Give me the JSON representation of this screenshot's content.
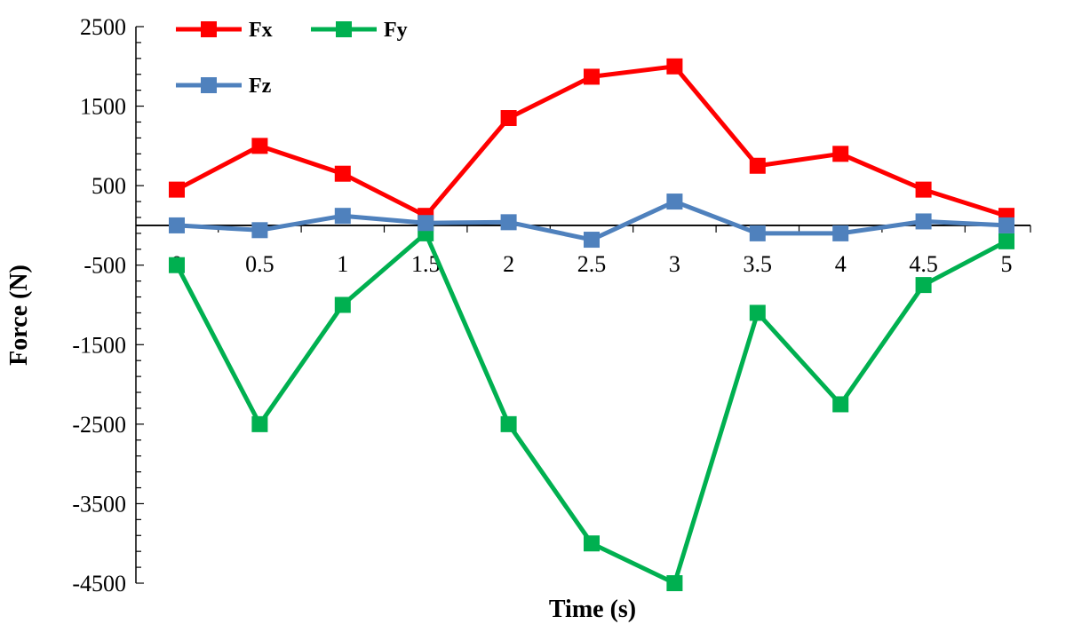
{
  "chart_data": {
    "type": "line",
    "xlabel": "Time (s)",
    "ylabel": "Force (N)",
    "x": [
      0,
      0.5,
      1,
      1.5,
      2,
      2.5,
      3,
      3.5,
      4,
      4.5,
      5
    ],
    "x_tick_labels": [
      "0",
      "0.5",
      "1",
      "1.5",
      "2",
      "2.5",
      "3",
      "3.5",
      "4",
      "4.5",
      "5"
    ],
    "ylim": [
      -4500,
      2500
    ],
    "y_ticks": [
      2500,
      1500,
      500,
      -500,
      -1500,
      -2500,
      -3500,
      -4500
    ],
    "grid": false,
    "legend": "top-left",
    "series": [
      {
        "name": "Fx",
        "color": "#ff0000",
        "values": [
          450,
          1000,
          650,
          120,
          1350,
          1870,
          2000,
          750,
          900,
          450,
          120
        ]
      },
      {
        "name": "Fy",
        "color": "#00b050",
        "values": [
          -500,
          -2500,
          -1000,
          -100,
          -2500,
          -4000,
          -4500,
          -1100,
          -2250,
          -750,
          -200
        ]
      },
      {
        "name": "Fz",
        "color": "#4f81bd",
        "values": [
          0,
          -60,
          120,
          30,
          40,
          -180,
          300,
          -100,
          -100,
          50,
          0
        ]
      }
    ]
  }
}
